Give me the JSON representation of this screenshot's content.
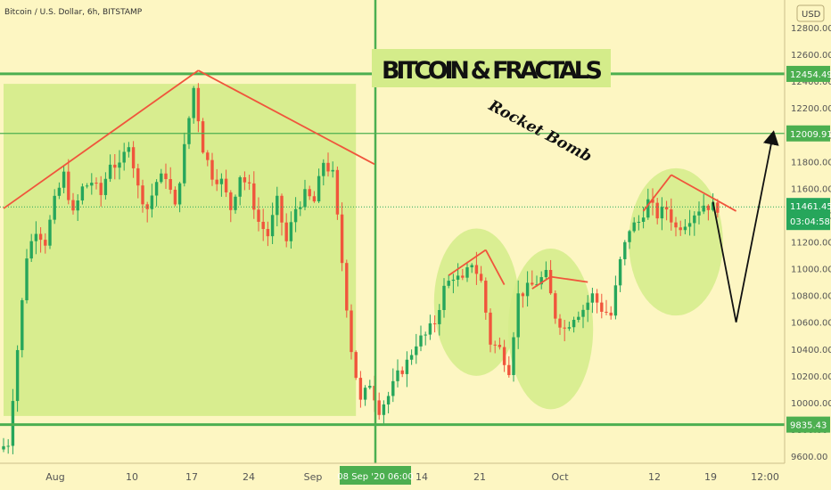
{
  "header": {
    "symbol_title": "Bitcoin / U.S. Dollar, 6h, BITSTAMP"
  },
  "annotations": {
    "headline": "BITCOIN & FRACTALS",
    "handwritten": "Rocket Bomb"
  },
  "currency_badge": "USD",
  "cursor_time_label": "08 Sep '20  06:00",
  "countdown_label": "03:04:58",
  "colors": {
    "background": "#fdf6c2",
    "up_candle": "#26a65b",
    "down_candle": "#f0553c",
    "zone_fill": "#d4ec8a",
    "level_line": "#4caf50",
    "trend_line": "#f0553c",
    "projection": "#111111",
    "axis_label_bg": "#4caf50"
  },
  "chart_data": {
    "type": "candlestick",
    "title": "Bitcoin / U.S. Dollar, 6h, BITSTAMP",
    "xlabel": "",
    "ylabel": "",
    "ylim": [
      9500,
      12800
    ],
    "y_ticks": [
      9600,
      9800,
      10000,
      10200,
      10400,
      10600,
      10800,
      11000,
      11200,
      11400,
      11600,
      11800,
      12000,
      12200,
      12400,
      12600,
      12800
    ],
    "x_tick_labels": [
      "Aug",
      "10",
      "17",
      "24",
      "Sep",
      "14",
      "21",
      "Oct",
      "12",
      "19",
      "12:00"
    ],
    "levels": [
      {
        "label": "12454.49",
        "value": 12454.49,
        "style": "thick"
      },
      {
        "label": "12009.91",
        "value": 12009.91,
        "style": "thin"
      },
      {
        "label": "9835.43",
        "value": 9835.43,
        "style": "thick"
      }
    ],
    "last_price": {
      "label": "11461.45",
      "value": 11461.45
    },
    "price_path_anchors": [
      [
        0,
        9650
      ],
      [
        2,
        9700
      ],
      [
        4,
        10400
      ],
      [
        6,
        11100
      ],
      [
        8,
        11300
      ],
      [
        10,
        11200
      ],
      [
        12,
        11500
      ],
      [
        14,
        11700
      ],
      [
        16,
        11400
      ],
      [
        18,
        11600
      ],
      [
        20,
        11650
      ],
      [
        22,
        11550
      ],
      [
        24,
        11800
      ],
      [
        26,
        11750
      ],
      [
        28,
        11950
      ],
      [
        30,
        11600
      ],
      [
        32,
        11450
      ],
      [
        34,
        11650
      ],
      [
        36,
        11700
      ],
      [
        38,
        11450
      ],
      [
        40,
        11900
      ],
      [
        42,
        12350
      ],
      [
        44,
        11900
      ],
      [
        46,
        11700
      ],
      [
        48,
        11650
      ],
      [
        50,
        11450
      ],
      [
        52,
        11700
      ],
      [
        54,
        11600
      ],
      [
        56,
        11350
      ],
      [
        58,
        11250
      ],
      [
        60,
        11500
      ],
      [
        62,
        11200
      ],
      [
        64,
        11450
      ],
      [
        66,
        11550
      ],
      [
        68,
        11500
      ],
      [
        70,
        11800
      ],
      [
        72,
        11700
      ],
      [
        74,
        11050
      ],
      [
        76,
        10400
      ],
      [
        78,
        10000
      ],
      [
        80,
        10150
      ],
      [
        82,
        9950
      ],
      [
        84,
        10050
      ],
      [
        86,
        10200
      ],
      [
        88,
        10300
      ],
      [
        90,
        10450
      ],
      [
        92,
        10500
      ],
      [
        94,
        10600
      ],
      [
        96,
        10850
      ],
      [
        98,
        10950
      ],
      [
        100,
        10900
      ],
      [
        102,
        11050
      ],
      [
        104,
        10900
      ],
      [
        106,
        10450
      ],
      [
        108,
        10400
      ],
      [
        110,
        10250
      ],
      [
        112,
        10800
      ],
      [
        114,
        10850
      ],
      [
        116,
        10900
      ],
      [
        118,
        10950
      ],
      [
        120,
        10650
      ],
      [
        122,
        10550
      ],
      [
        124,
        10650
      ],
      [
        126,
        10700
      ],
      [
        128,
        10800
      ],
      [
        130,
        10700
      ],
      [
        132,
        10650
      ],
      [
        134,
        11050
      ],
      [
        136,
        11300
      ],
      [
        138,
        11350
      ],
      [
        140,
        11500
      ],
      [
        142,
        11400
      ],
      [
        144,
        11450
      ],
      [
        146,
        11300
      ],
      [
        148,
        11350
      ],
      [
        150,
        11420
      ],
      [
        152,
        11480
      ],
      [
        154,
        11461
      ]
    ],
    "zones": [
      {
        "shape": "rect",
        "x": [
          0,
          76
        ],
        "y": [
          9900,
          12380
        ]
      },
      {
        "shape": "ellipse",
        "x": [
          94,
          110
        ],
        "y": [
          10200,
          11300
        ]
      },
      {
        "shape": "ellipse",
        "x": [
          110,
          126
        ],
        "y": [
          9950,
          11150
        ]
      },
      {
        "shape": "ellipse",
        "x": [
          136,
          154
        ],
        "y": [
          10650,
          11750
        ]
      }
    ],
    "trend_lines": [
      {
        "from": [
          0,
          11450
        ],
        "to": [
          42,
          12480
        ]
      },
      {
        "from": [
          42,
          12480
        ],
        "to": [
          80,
          11780
        ]
      },
      {
        "from": [
          96,
          10950
        ],
        "to": [
          104,
          11140
        ]
      },
      {
        "from": [
          104,
          11140
        ],
        "to": [
          108,
          10880
        ]
      },
      {
        "from": [
          114,
          10850
        ],
        "to": [
          118,
          10940
        ]
      },
      {
        "from": [
          118,
          10940
        ],
        "to": [
          126,
          10900
        ]
      },
      {
        "from": [
          138,
          11430
        ],
        "to": [
          144,
          11700
        ]
      },
      {
        "from": [
          144,
          11700
        ],
        "to": [
          158,
          11430
        ]
      }
    ],
    "projection": [
      [
        153,
        11500
      ],
      [
        158,
        10600
      ],
      [
        166,
        12009.91
      ]
    ],
    "vertical_marker_x": 80
  }
}
